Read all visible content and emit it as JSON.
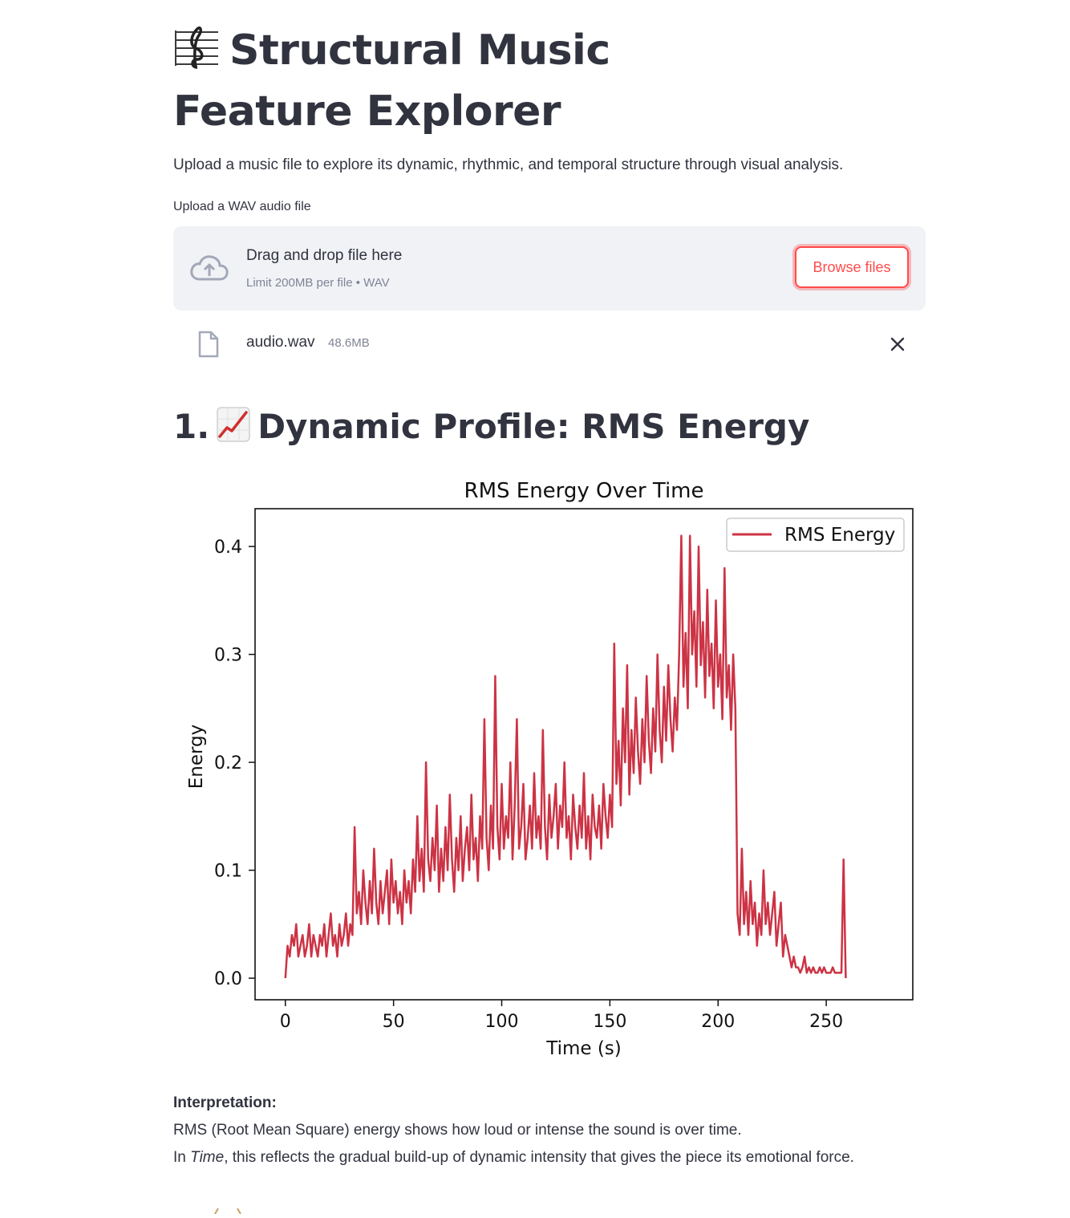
{
  "page": {
    "title": "Structural Music Feature Explorer",
    "title_icon": "musical-score-icon",
    "intro": "Upload a music file to explore its dynamic, rhythmic, and temporal structure through visual analysis."
  },
  "uploader": {
    "label": "Upload a WAV audio file",
    "drop_title": "Drag and drop file here",
    "limit": "Limit 200MB per file • WAV",
    "browse_label": "Browse files",
    "upload_icon": "cloud-upload-icon"
  },
  "file": {
    "name": "audio.wav",
    "size": "48.6MB",
    "file_icon": "file-icon",
    "remove_icon": "close-icon"
  },
  "section1": {
    "number": "1.",
    "icon": "chart-increasing-icon",
    "title": "Dynamic Profile: RMS Energy"
  },
  "chart_data": {
    "type": "line",
    "title": "RMS Energy Over Time",
    "xlabel": "Time (s)",
    "ylabel": "Energy",
    "xlim": [
      -14,
      290
    ],
    "ylim": [
      -0.02,
      0.435
    ],
    "xticks": [
      0,
      50,
      100,
      150,
      200,
      250
    ],
    "yticks": [
      0.0,
      0.1,
      0.2,
      0.3,
      0.4
    ],
    "ytick_labels": [
      "0.0",
      "0.1",
      "0.2",
      "0.3",
      "0.4"
    ],
    "grid": false,
    "legend_position": "top-right",
    "color": "#cc3344",
    "series": [
      {
        "name": "RMS Energy",
        "note_x_step_seconds": 1,
        "x_start": 0,
        "values": [
          0.0,
          0.03,
          0.02,
          0.04,
          0.03,
          0.05,
          0.02,
          0.03,
          0.04,
          0.02,
          0.03,
          0.05,
          0.02,
          0.04,
          0.03,
          0.02,
          0.04,
          0.03,
          0.05,
          0.02,
          0.04,
          0.06,
          0.03,
          0.04,
          0.02,
          0.05,
          0.03,
          0.04,
          0.06,
          0.03,
          0.05,
          0.04,
          0.14,
          0.06,
          0.08,
          0.05,
          0.1,
          0.07,
          0.05,
          0.09,
          0.06,
          0.12,
          0.07,
          0.05,
          0.09,
          0.06,
          0.08,
          0.1,
          0.05,
          0.11,
          0.07,
          0.09,
          0.06,
          0.08,
          0.05,
          0.1,
          0.07,
          0.09,
          0.06,
          0.11,
          0.08,
          0.15,
          0.09,
          0.12,
          0.08,
          0.2,
          0.11,
          0.09,
          0.13,
          0.1,
          0.16,
          0.08,
          0.12,
          0.09,
          0.14,
          0.1,
          0.17,
          0.11,
          0.08,
          0.13,
          0.1,
          0.15,
          0.09,
          0.12,
          0.14,
          0.1,
          0.17,
          0.11,
          0.13,
          0.09,
          0.15,
          0.12,
          0.24,
          0.13,
          0.1,
          0.16,
          0.12,
          0.28,
          0.14,
          0.11,
          0.18,
          0.12,
          0.15,
          0.13,
          0.2,
          0.11,
          0.16,
          0.24,
          0.12,
          0.14,
          0.18,
          0.11,
          0.13,
          0.16,
          0.12,
          0.19,
          0.13,
          0.15,
          0.12,
          0.23,
          0.14,
          0.11,
          0.17,
          0.13,
          0.15,
          0.18,
          0.12,
          0.16,
          0.14,
          0.2,
          0.13,
          0.15,
          0.11,
          0.17,
          0.14,
          0.12,
          0.16,
          0.13,
          0.19,
          0.12,
          0.15,
          0.11,
          0.17,
          0.14,
          0.13,
          0.16,
          0.12,
          0.18,
          0.15,
          0.13,
          0.17,
          0.14,
          0.31,
          0.18,
          0.22,
          0.16,
          0.25,
          0.2,
          0.29,
          0.17,
          0.23,
          0.19,
          0.26,
          0.21,
          0.18,
          0.24,
          0.2,
          0.28,
          0.22,
          0.19,
          0.25,
          0.21,
          0.3,
          0.23,
          0.2,
          0.27,
          0.22,
          0.29,
          0.24,
          0.21,
          0.26,
          0.23,
          0.3,
          0.41,
          0.27,
          0.32,
          0.25,
          0.41,
          0.3,
          0.34,
          0.27,
          0.4,
          0.29,
          0.33,
          0.26,
          0.36,
          0.28,
          0.31,
          0.25,
          0.35,
          0.27,
          0.3,
          0.24,
          0.38,
          0.26,
          0.29,
          0.23,
          0.3,
          0.25,
          0.06,
          0.04,
          0.12,
          0.05,
          0.08,
          0.04,
          0.09,
          0.05,
          0.07,
          0.03,
          0.06,
          0.04,
          0.1,
          0.05,
          0.07,
          0.04,
          0.06,
          0.08,
          0.03,
          0.05,
          0.07,
          0.02,
          0.04,
          0.03,
          0.02,
          0.01,
          0.02,
          0.01,
          0.01,
          0.005,
          0.01,
          0.02,
          0.005,
          0.01,
          0.005,
          0.01,
          0.005,
          0.005,
          0.01,
          0.005,
          0.01,
          0.005,
          0.005,
          0.005,
          0.01,
          0.005,
          0.005,
          0.005,
          0.005,
          0.11,
          0.0
        ]
      }
    ]
  },
  "interpretation": {
    "heading": "Interpretation:",
    "line1": "RMS (Root Mean Square) energy shows how loud or intense the sound is over time.",
    "line2_prefix": "In ",
    "line2_em": "Time",
    "line2_suffix": ", this reflects the gradual build-up of dynamic intensity that gives the piece its emotional force."
  }
}
